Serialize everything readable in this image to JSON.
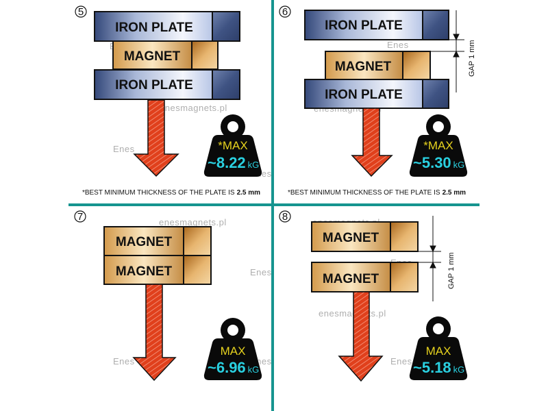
{
  "colors": {
    "divider": "#16948f",
    "arrow": "#e0401c",
    "weight": "#0a0a0a",
    "max_text": "#e6d21e",
    "value_text": "#2ad0e0"
  },
  "watermark": {
    "text": "enesmagnets.pl",
    "logo": "Enes"
  },
  "panels": [
    {
      "number": "5",
      "blocks": [
        "IRON PLATE",
        "MAGNET",
        "IRON PLATE"
      ],
      "max_label": "*MAX",
      "value": "~8.22",
      "unit": "kG",
      "note_prefix": "*BEST MINIMUM THICKNESS OF THE PLATE IS",
      "note_value": "2.5 mm"
    },
    {
      "number": "6",
      "blocks": [
        "IRON PLATE",
        "MAGNET",
        "IRON PLATE"
      ],
      "max_label": "*MAX",
      "value": "~5.30",
      "unit": "kG",
      "gap_label": "GAP  1 mm",
      "note_prefix": "*BEST MINIMUM THICKNESS OF THE PLATE IS",
      "note_value": "2.5 mm"
    },
    {
      "number": "7",
      "blocks": [
        "MAGNET",
        "MAGNET"
      ],
      "max_label": "MAX",
      "value": "~6.96",
      "unit": "kG"
    },
    {
      "number": "8",
      "blocks": [
        "MAGNET",
        "MAGNET"
      ],
      "max_label": "MAX",
      "value": "~5.18",
      "unit": "kG",
      "gap_label": "GAP  1 mm"
    }
  ]
}
